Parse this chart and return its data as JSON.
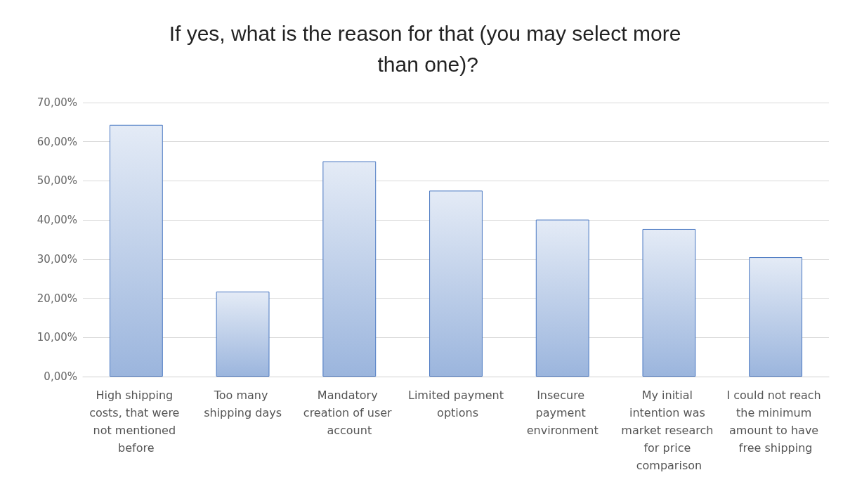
{
  "chart_data": {
    "type": "bar",
    "title": "If yes, what is the reason for that (you may select more than one)?",
    "categories": [
      "High shipping costs, that were not mentioned before",
      "Too many shipping days",
      "Mandatory creation of user account",
      "Limited payment options",
      "Insecure payment environment",
      "My initial intention was market research for price comparison",
      "I could not reach the minimum amount to have free shipping"
    ],
    "values": [
      64.3,
      21.7,
      55.0,
      47.5,
      40.1,
      37.7,
      30.5
    ],
    "color": "#4a78c2",
    "ylim": [
      0,
      70
    ],
    "yticks": [
      {
        "value": 0,
        "label": "0,00%"
      },
      {
        "value": 10,
        "label": "10,00%"
      },
      {
        "value": 20,
        "label": "20,00%"
      },
      {
        "value": 30,
        "label": "30,00%"
      },
      {
        "value": 40,
        "label": "40,00%"
      },
      {
        "value": 50,
        "label": "50,00%"
      },
      {
        "value": 60,
        "label": "60,00%"
      },
      {
        "value": 70,
        "label": "70,00%"
      }
    ],
    "grid": "y"
  }
}
